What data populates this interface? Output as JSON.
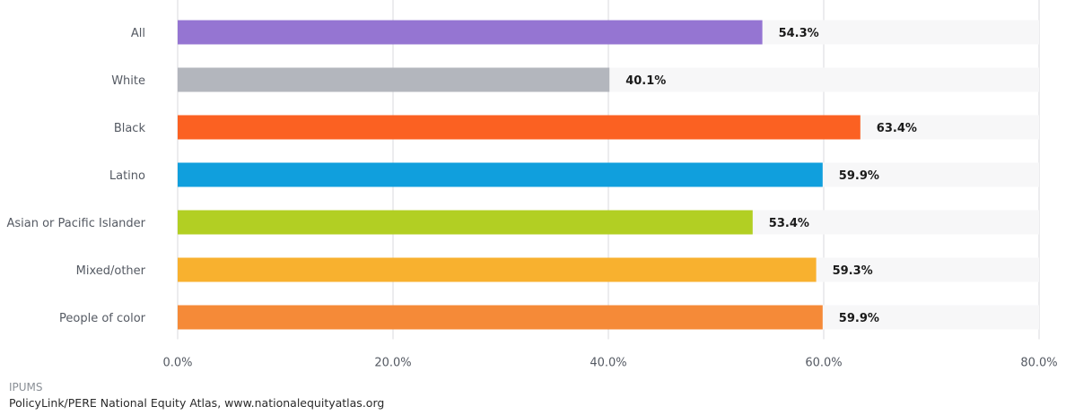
{
  "chart_data": {
    "type": "bar",
    "orientation": "horizontal",
    "categories": [
      "All",
      "White",
      "Black",
      "Latino",
      "Asian or Pacific Islander",
      "Mixed/other",
      "People of color"
    ],
    "values": [
      54.3,
      40.1,
      63.4,
      59.9,
      53.4,
      59.3,
      59.9
    ],
    "value_labels": [
      "54.3%",
      "40.1%",
      "63.4%",
      "59.9%",
      "53.4%",
      "59.3%",
      "59.9%"
    ],
    "colors": [
      "#9575d2",
      "#b3b6bd",
      "#fb6122",
      "#109fdd",
      "#b2cf23",
      "#f8b12f",
      "#f58a38"
    ],
    "xlim": [
      0,
      80
    ],
    "xticks": [
      0,
      20,
      40,
      60,
      80
    ],
    "xtick_labels": [
      "0.0%",
      "20.0%",
      "40.0%",
      "60.0%",
      "80.0%"
    ],
    "grid": true,
    "title": "",
    "xlabel": "",
    "ylabel": ""
  },
  "source": {
    "line1": "IPUMS",
    "line2": "PolicyLink/PERE National Equity Atlas, www.nationalequityatlas.org"
  }
}
